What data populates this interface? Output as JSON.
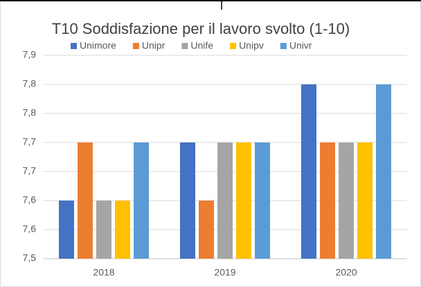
{
  "chart_data": {
    "type": "bar",
    "title": "T10 Soddisfazione  per il lavoro svolto (1-10)",
    "categories": [
      "2018",
      "2019",
      "2020"
    ],
    "series": [
      {
        "name": "Unimore",
        "color": "#4472c4",
        "values": [
          7.6,
          7.7,
          7.8
        ]
      },
      {
        "name": "Unipr",
        "color": "#ed7d31",
        "values": [
          7.7,
          7.6,
          7.7
        ]
      },
      {
        "name": "Unife",
        "color": "#a5a5a5",
        "values": [
          7.6,
          7.7,
          7.7
        ]
      },
      {
        "name": "Unipv",
        "color": "#ffc000",
        "values": [
          7.6,
          7.7,
          7.7
        ]
      },
      {
        "name": "Univr",
        "color": "#5b9bd5",
        "values": [
          7.7,
          7.7,
          7.8
        ]
      }
    ],
    "ylim": [
      7.5,
      7.85
    ],
    "yticks": [
      {
        "value": 7.5,
        "label": "7,5"
      },
      {
        "value": 7.55,
        "label": "7,6"
      },
      {
        "value": 7.6,
        "label": "7,6"
      },
      {
        "value": 7.65,
        "label": "7,7"
      },
      {
        "value": 7.7,
        "label": "7,7"
      },
      {
        "value": 7.75,
        "label": "7,8"
      },
      {
        "value": 7.8,
        "label": "7,8"
      },
      {
        "value": 7.85,
        "label": "7,9"
      }
    ],
    "grid": true,
    "legend": "top"
  }
}
